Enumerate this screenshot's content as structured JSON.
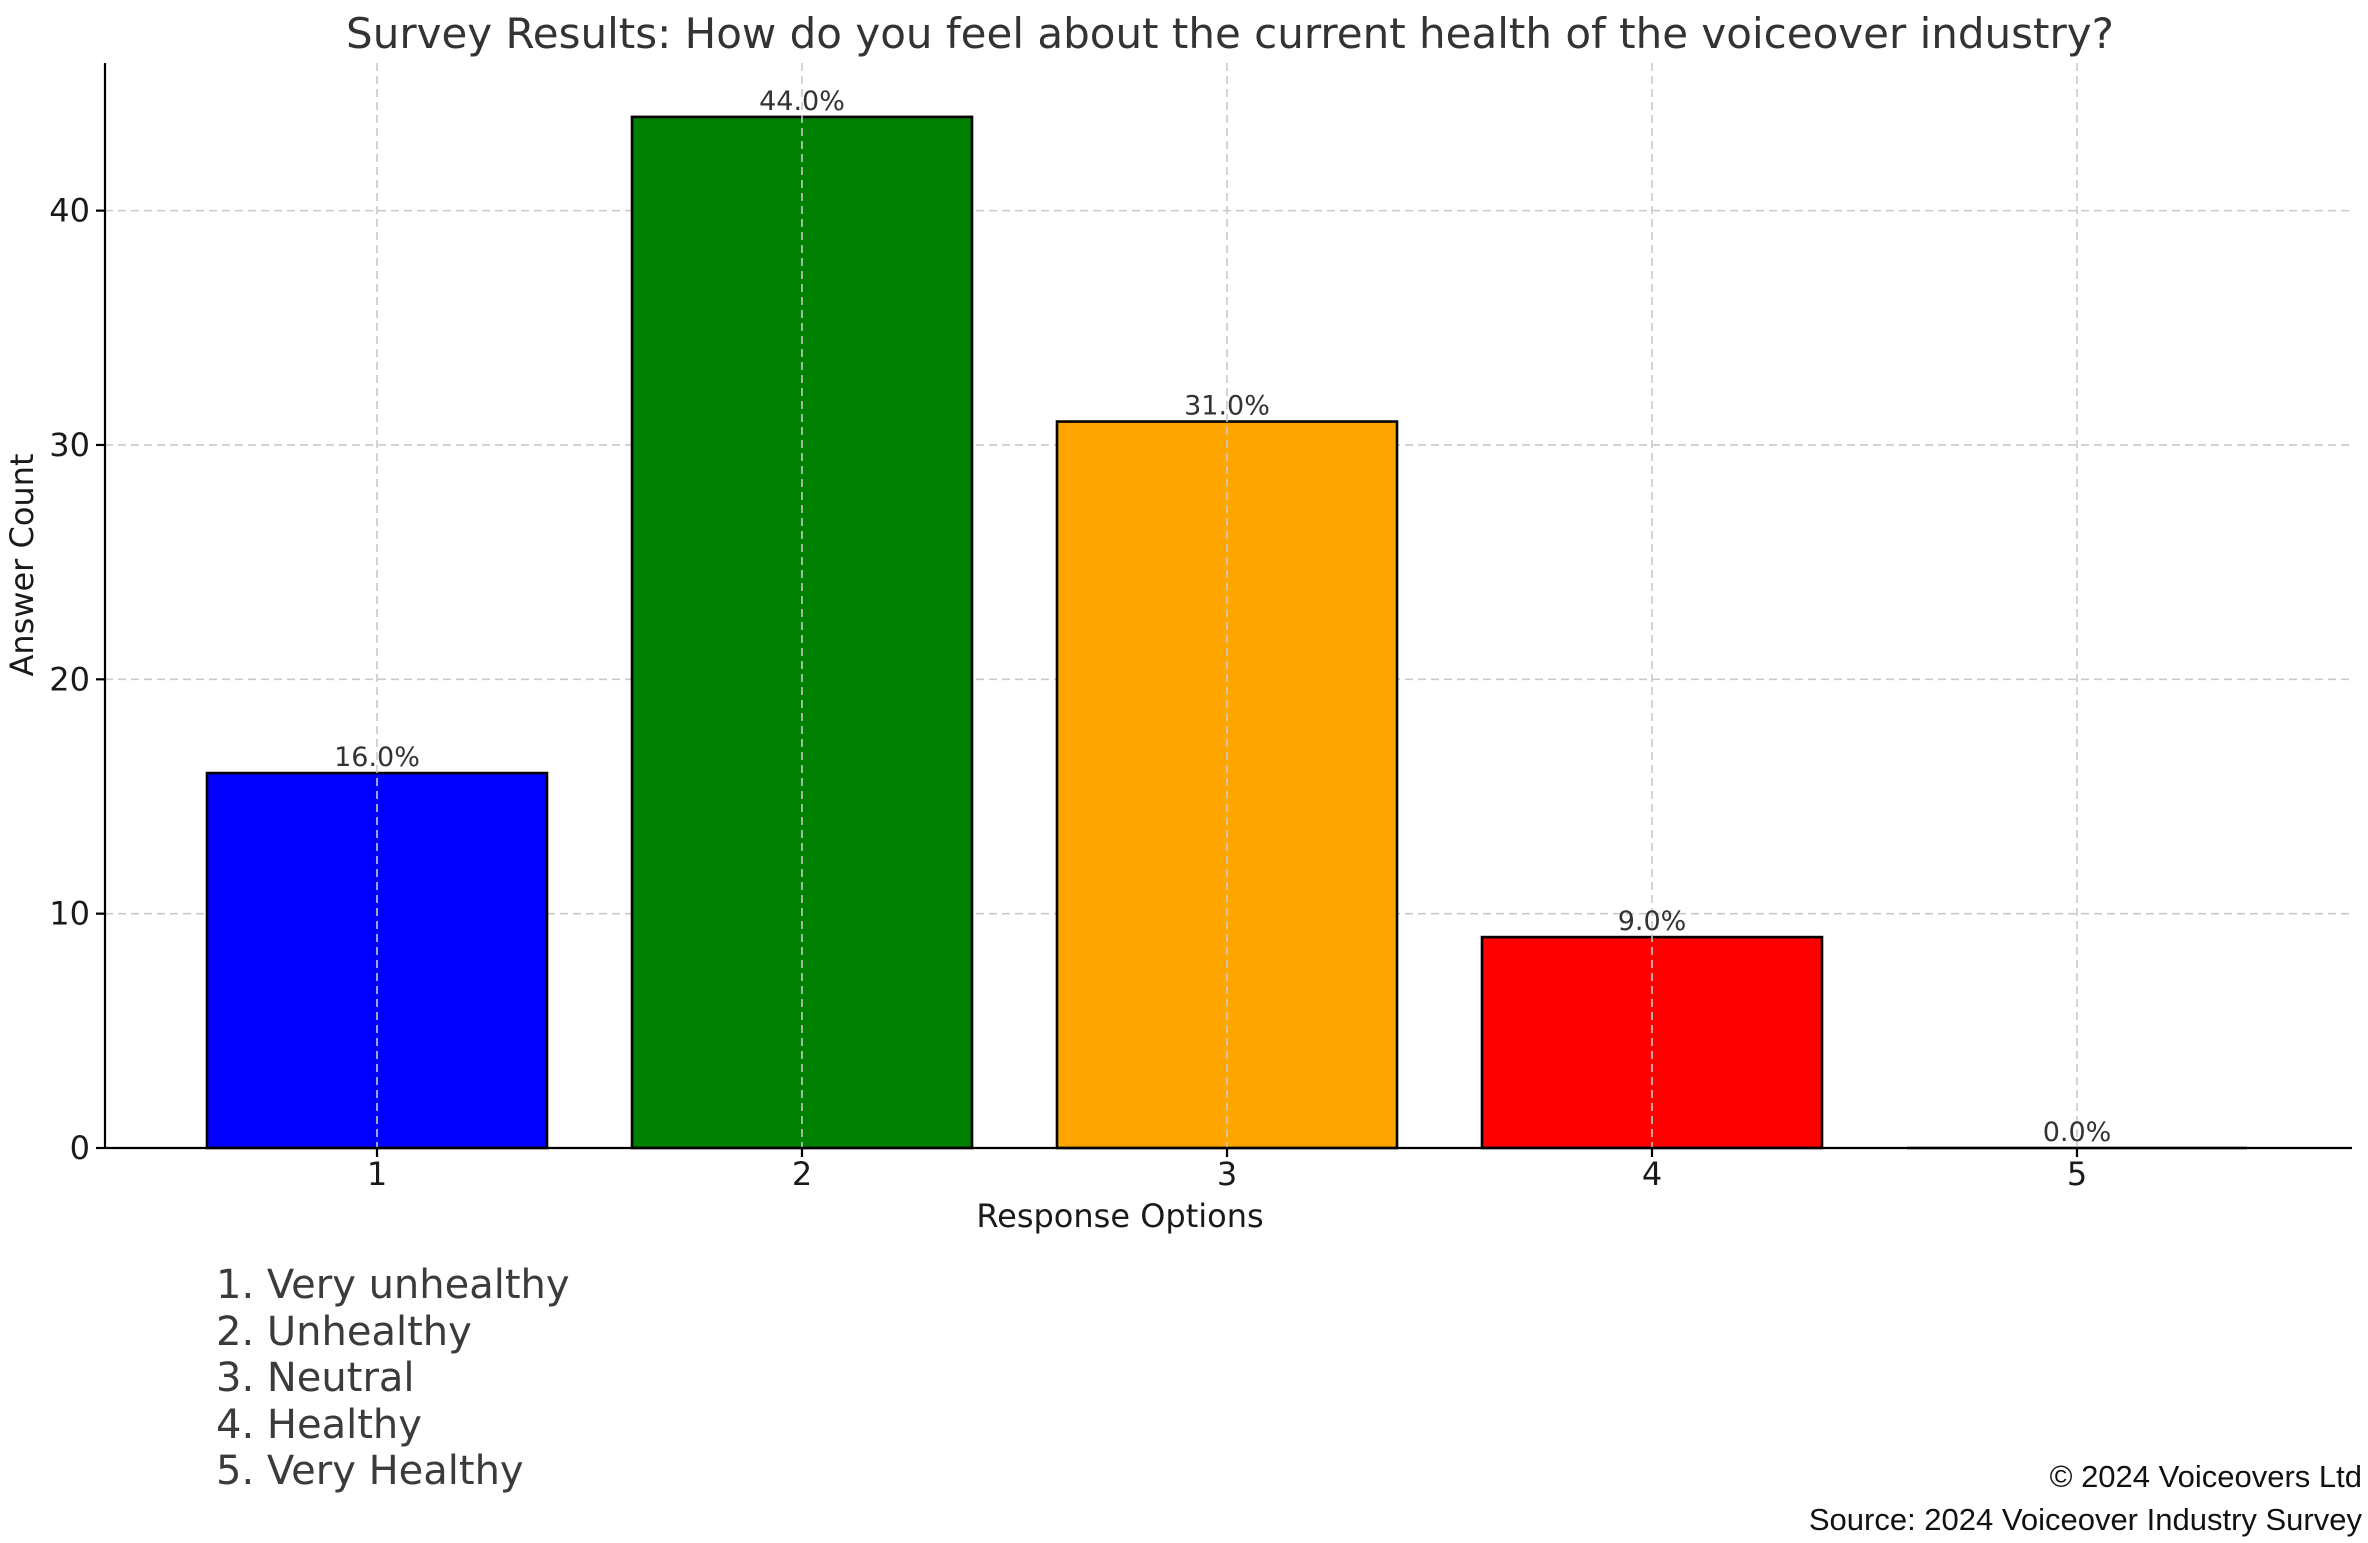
{
  "chart_data": {
    "type": "bar",
    "title": "Survey Results: How do you feel about the current health of the voiceover industry?",
    "xlabel": "Response Options",
    "ylabel": "Answer Count",
    "categories": [
      "1",
      "2",
      "3",
      "4",
      "5"
    ],
    "values": [
      16,
      44,
      31,
      9,
      0
    ],
    "data_labels": [
      "16.0%",
      "44.0%",
      "31.0%",
      "9.0%",
      "0.0%"
    ],
    "colors": [
      "#0000ff",
      "#008000",
      "#ffa500",
      "#ff0000",
      "#808080"
    ],
    "ylim": [
      0,
      46.3
    ],
    "yticks": [
      0,
      10,
      20,
      30,
      40
    ],
    "grid": true
  },
  "legend": {
    "items": [
      "1. Very unhealthy",
      "2. Unhealthy",
      "3. Neutral",
      "4. Healthy",
      "5. Very Healthy"
    ]
  },
  "footer": {
    "copyright": "© 2024 Voiceovers Ltd",
    "source": "Source: 2024 Voiceover Industry Survey"
  }
}
